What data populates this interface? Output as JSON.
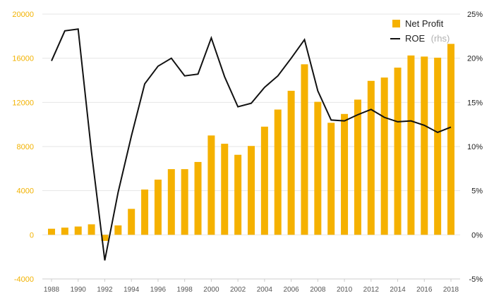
{
  "chart_data": {
    "type": "bar+line",
    "x": [
      1988,
      1989,
      1990,
      1991,
      1992,
      1993,
      1994,
      1995,
      1996,
      1997,
      1998,
      1999,
      2000,
      2001,
      2002,
      2003,
      2004,
      2005,
      2006,
      2007,
      2008,
      2009,
      2010,
      2011,
      2012,
      2013,
      2014,
      2015,
      2016,
      2017,
      2018
    ],
    "series": [
      {
        "name": "Net Profit",
        "kind": "bar",
        "axis": "left",
        "color": "#f5b100",
        "values": [
          550,
          650,
          750,
          950,
          -550,
          850,
          2350,
          4100,
          5000,
          5950,
          5950,
          6600,
          9000,
          8250,
          7250,
          8050,
          9800,
          11350,
          13050,
          15450,
          12050,
          10150,
          10950,
          12250,
          13950,
          14250,
          15150,
          16250,
          16150,
          16050,
          17300
        ]
      },
      {
        "name": "ROE",
        "name_suffix": "(rhs)",
        "kind": "line",
        "axis": "right",
        "color": "#111111",
        "values": [
          19.7,
          23.1,
          23.3,
          9.4,
          -2.9,
          4.8,
          11.2,
          17.1,
          19.1,
          20.0,
          18.0,
          18.2,
          22.3,
          17.9,
          14.5,
          14.9,
          16.7,
          18.0,
          20.0,
          22.1,
          16.3,
          13.0,
          12.9,
          13.6,
          14.2,
          13.3,
          12.8,
          12.9,
          12.4,
          11.6,
          12.2
        ]
      }
    ],
    "x_ticks": [
      "1988",
      "1990",
      "1992",
      "1994",
      "1996",
      "1998",
      "2000",
      "2002",
      "2004",
      "2006",
      "2008",
      "2010",
      "2012",
      "2014",
      "2016",
      "2018"
    ],
    "y_left": {
      "ticks": [
        "20000",
        "16000",
        "12000",
        "8000",
        "4000",
        "0",
        "-4000"
      ],
      "range": [
        -4000,
        20000
      ],
      "color": "#f2b200"
    },
    "y_right": {
      "ticks": [
        "25%",
        "20%",
        "15%",
        "10%",
        "5%",
        "0%",
        "-5%"
      ],
      "range": [
        -5,
        25
      ],
      "color": "#222222"
    },
    "grid": true,
    "legend_position": "top-right"
  }
}
